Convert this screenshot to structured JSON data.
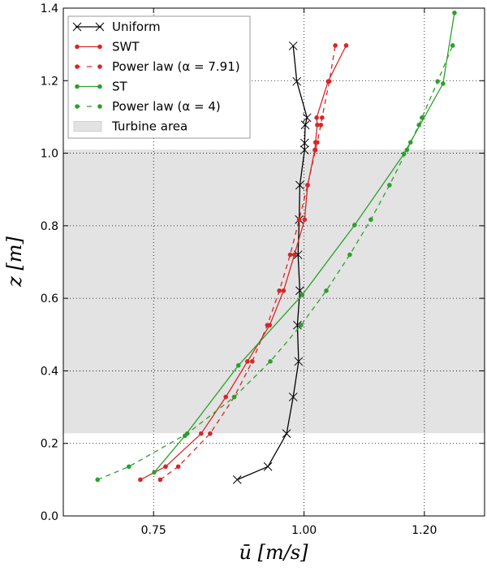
{
  "chart_data": {
    "type": "line",
    "xlabel": "ū [m/s]",
    "ylabel": "z [m]",
    "xlim": [
      0.6,
      1.3
    ],
    "ylim": [
      0.0,
      1.4
    ],
    "xticks": [
      "0.75",
      "1.00",
      "1.20"
    ],
    "xtick_values": [
      0.75,
      1.0,
      1.2
    ],
    "yticks": [
      "0.0",
      "0.2",
      "0.4",
      "0.6",
      "0.8",
      "1.0",
      "1.2",
      "1.4"
    ],
    "ytick_values": [
      0.0,
      0.2,
      0.4,
      0.6,
      0.8,
      1.0,
      1.2,
      1.4
    ],
    "grid": true,
    "legend_position": "top-left",
    "shaded_region": {
      "name": "Turbine area",
      "z_range": [
        0.228,
        1.01
      ],
      "color": "#e3e3e3"
    },
    "series": [
      {
        "name": "Uniform",
        "color": "#000000",
        "marker": "x",
        "dash": false,
        "x": [
          0.889,
          0.94,
          0.971,
          0.982,
          0.991,
          0.989,
          0.993,
          0.99,
          0.992,
          0.993,
          1.001,
          1.001,
          1.002,
          1.005,
          0.988,
          0.982
        ],
        "y": [
          0.1,
          0.136,
          0.227,
          0.328,
          0.426,
          0.526,
          0.621,
          0.72,
          0.817,
          0.912,
          1.009,
          1.028,
          1.078,
          1.098,
          1.198,
          1.296
        ]
      },
      {
        "name": "SWT",
        "color": "#d62728",
        "marker": "o",
        "dash": false,
        "x": [
          0.728,
          0.77,
          0.829,
          0.87,
          0.906,
          0.943,
          0.966,
          0.984,
          1.001,
          1.006,
          1.018,
          1.019,
          1.022,
          1.021,
          1.04,
          1.07
        ],
        "y": [
          0.1,
          0.136,
          0.227,
          0.328,
          0.426,
          0.526,
          0.621,
          0.72,
          0.817,
          0.912,
          1.009,
          1.03,
          1.078,
          1.098,
          1.198,
          1.297
        ]
      },
      {
        "name": "Power law (α = 7.91)",
        "color": "#d62728",
        "marker": "o",
        "dash": true,
        "x": [
          0.761,
          0.791,
          0.844,
          0.884,
          0.914,
          0.939,
          0.959,
          0.977,
          0.992,
          1.006,
          1.019,
          1.022,
          1.028,
          1.03,
          1.042,
          1.052
        ],
        "y": [
          0.1,
          0.136,
          0.227,
          0.328,
          0.426,
          0.526,
          0.621,
          0.72,
          0.817,
          0.912,
          1.009,
          1.03,
          1.078,
          1.098,
          1.198,
          1.297
        ]
      },
      {
        "name": "ST",
        "color": "#2ca02c",
        "marker": "o",
        "dash": false,
        "x": [
          0.751,
          0.802,
          0.891,
          0.997,
          1.084,
          1.166,
          1.231,
          1.25
        ],
        "y": [
          0.12,
          0.221,
          0.415,
          0.609,
          0.802,
          0.998,
          1.192,
          1.387
        ]
      },
      {
        "name": "Power law (α = 4)",
        "color": "#2ca02c",
        "marker": "o",
        "dash": true,
        "x": [
          0.657,
          0.709,
          0.806,
          0.884,
          0.944,
          0.995,
          1.037,
          1.076,
          1.111,
          1.142,
          1.171,
          1.177,
          1.191,
          1.196,
          1.222,
          1.247
        ],
        "y": [
          0.1,
          0.136,
          0.227,
          0.328,
          0.426,
          0.526,
          0.621,
          0.72,
          0.817,
          0.912,
          1.009,
          1.03,
          1.078,
          1.098,
          1.198,
          1.297
        ]
      }
    ],
    "legend": [
      "Uniform",
      "SWT",
      "Power law (α = 7.91)",
      "ST",
      "Power law (α = 4)",
      "Turbine area"
    ]
  }
}
